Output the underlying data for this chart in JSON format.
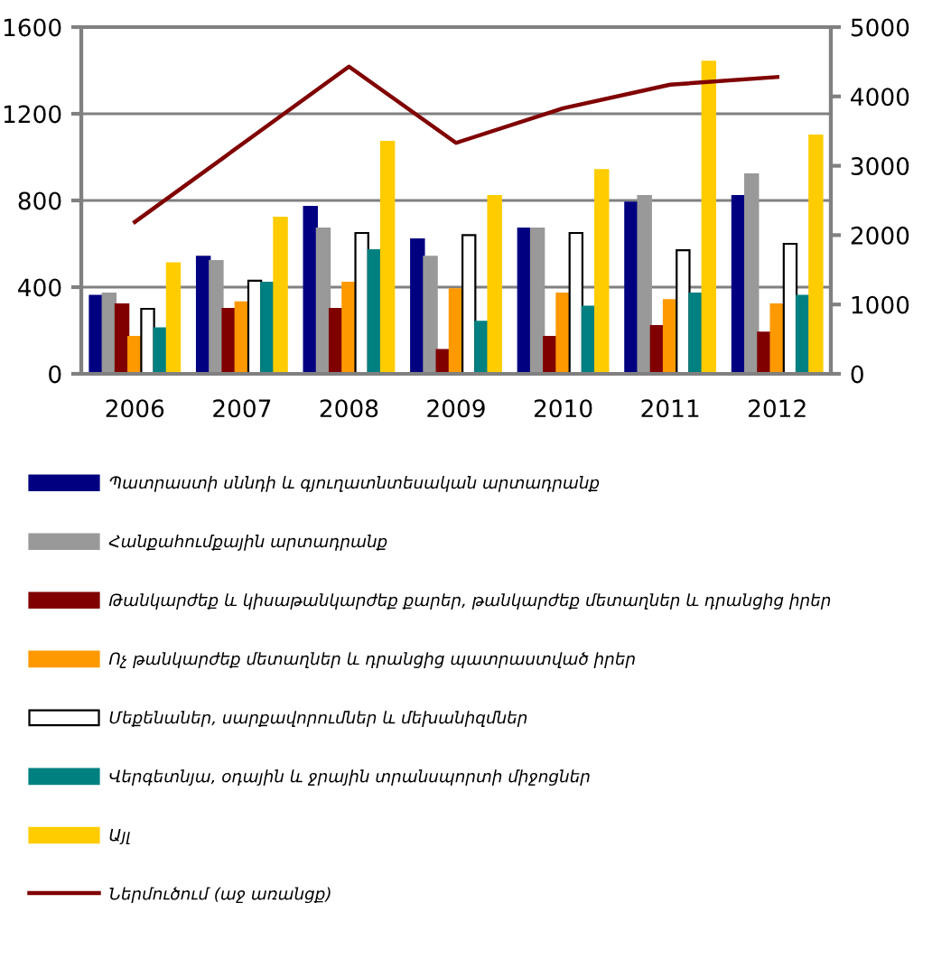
{
  "chart_data": {
    "type": "bar",
    "categories": [
      "2006",
      "2007",
      "2008",
      "2009",
      "2010",
      "2011",
      "2012"
    ],
    "series": [
      {
        "name": "Պատրաստի սննդի և գյուղատնտեսական արտադրանք",
        "color": "#000080",
        "values": [
          360,
          540,
          770,
          620,
          670,
          790,
          820
        ]
      },
      {
        "name": "Հանքահումքային արտադրանք",
        "color": "#999999",
        "values": [
          370,
          520,
          670,
          540,
          670,
          820,
          920
        ]
      },
      {
        "name": "Թանկարժեք և կիսաթանկարժեք քարեր, թանկարժեք մետաղներ և դրանցից իրեր",
        "color": "#800000",
        "values": [
          320,
          300,
          300,
          110,
          170,
          220,
          190
        ]
      },
      {
        "name": "Ոչ թանկարժեք մետաղներ և դրանցից պատրաստված իրեր",
        "color": "#ff9900",
        "values": [
          170,
          330,
          420,
          390,
          370,
          340,
          320
        ]
      },
      {
        "name": "Մեքենաներ, սարքավորումներ և մեխանիզմներ",
        "color": "#ffffff",
        "values": [
          300,
          430,
          650,
          640,
          650,
          570,
          600
        ]
      },
      {
        "name": "Վերգետնյա, օդային և ջրային տրանսպորտի միջոցներ",
        "color": "#008080",
        "values": [
          210,
          420,
          570,
          240,
          310,
          370,
          360
        ]
      },
      {
        "name": "Այլ",
        "color": "#ffcc00",
        "values": [
          510,
          720,
          1070,
          820,
          940,
          1440,
          1100
        ]
      },
      {
        "name": "Ներմուծում (աջ առանցք)",
        "color": "#800000",
        "type": "line",
        "axis": "y2",
        "marker": "none",
        "values": [
          2190,
          3310,
          4430,
          3330,
          3830,
          4170,
          4280
        ]
      }
    ],
    "ylim": [
      0,
      1600
    ],
    "yticks": [
      0,
      400,
      800,
      1200,
      1600
    ],
    "y2lim": [
      0,
      5000
    ],
    "y2ticks": [
      0,
      1000,
      2000,
      3000,
      4000,
      5000
    ],
    "grid": true,
    "legend": "bottom"
  }
}
